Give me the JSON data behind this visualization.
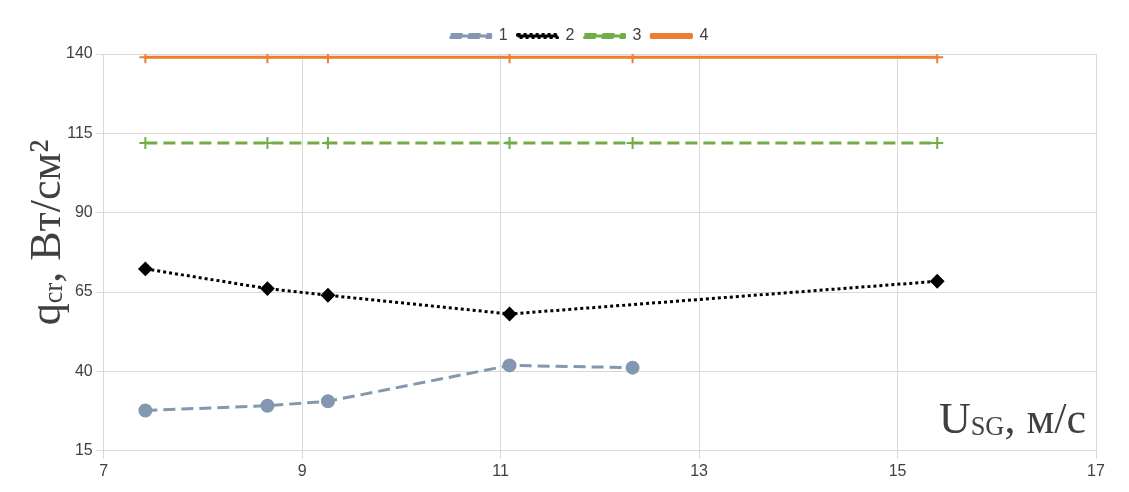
{
  "chart_data": {
    "type": "line",
    "xlabel": "U$_{SG}$, м/с",
    "ylabel": "q$_{cr}$, Вт/см²",
    "xlim": [
      7,
      17
    ],
    "xticks": [
      7,
      9,
      11,
      13,
      15,
      17
    ],
    "ylim": [
      15,
      140
    ],
    "yticks": [
      15,
      40,
      65,
      90,
      115,
      140
    ],
    "grid": true,
    "legend": "top",
    "series": [
      {
        "name": "1",
        "color": "#8497b0",
        "marker": "circle",
        "line_style": "dashed",
        "x": [
          7.42,
          8.65,
          9.26,
          11.09,
          12.33
        ],
        "values": [
          27.7,
          29.2,
          30.6,
          41.9,
          41.2
        ]
      },
      {
        "name": "2",
        "color": "#000000",
        "marker": "diamond",
        "line_style": "dotted",
        "x": [
          7.42,
          8.65,
          9.26,
          11.09,
          15.4
        ],
        "values": [
          72.3,
          66.1,
          64.0,
          58.1,
          68.4
        ]
      },
      {
        "name": "3",
        "color": "#70ad47",
        "marker": "cross",
        "line_style": "dashed",
        "x": [
          7.42,
          8.65,
          9.26,
          11.09,
          12.33,
          15.4
        ],
        "values": [
          112,
          112,
          112,
          112,
          112,
          112
        ]
      },
      {
        "name": "4",
        "color": "#ed7d31",
        "marker": "cross",
        "line_style": "solid",
        "x": [
          7.42,
          8.65,
          9.26,
          11.09,
          12.33,
          15.4
        ],
        "values": [
          139,
          139,
          139,
          139,
          139,
          139
        ]
      }
    ]
  }
}
